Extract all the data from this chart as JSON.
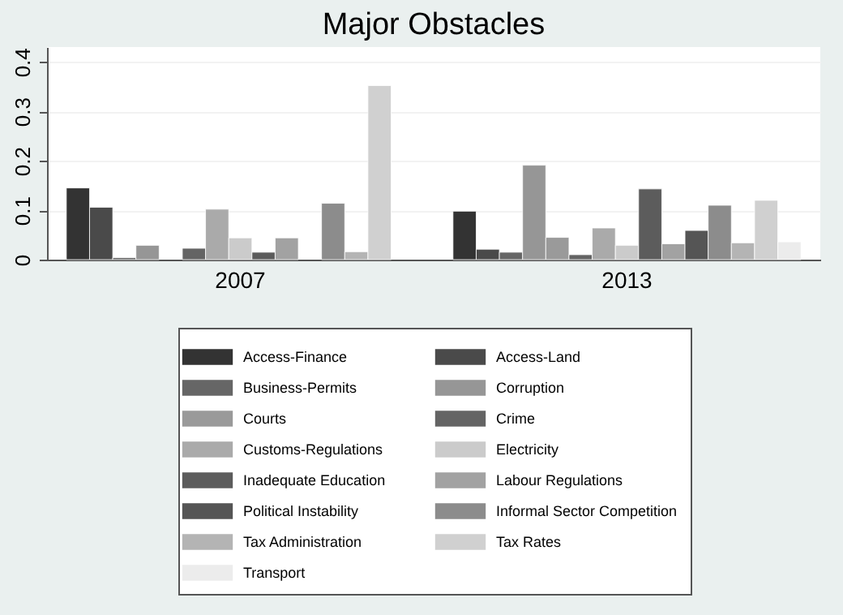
{
  "chart_data": {
    "type": "bar",
    "title": "Major Obstacles",
    "categories": [
      "2007",
      "2013"
    ],
    "series": [
      {
        "name": "Access-Finance",
        "color": "#333333",
        "values": [
          0.145,
          0.098
        ]
      },
      {
        "name": "Access-Land",
        "color": "#4a4a4a",
        "values": [
          0.106,
          0.021
        ]
      },
      {
        "name": "Business-Permits",
        "color": "#666666",
        "values": [
          0.004,
          0.015
        ]
      },
      {
        "name": "Corruption",
        "color": "#969696",
        "values": [
          0.029,
          0.191
        ]
      },
      {
        "name": "Courts",
        "color": "#9a9a9a",
        "values": [
          null,
          0.045
        ]
      },
      {
        "name": "Crime",
        "color": "#646464",
        "values": [
          0.023,
          0.01
        ]
      },
      {
        "name": "Customs-Regulations",
        "color": "#aaaaaa",
        "values": [
          0.102,
          0.064
        ]
      },
      {
        "name": "Electricity",
        "color": "#cbcbcb",
        "values": [
          0.044,
          0.029
        ]
      },
      {
        "name": "Inadequate Education",
        "color": "#5c5c5c",
        "values": [
          0.015,
          0.143
        ]
      },
      {
        "name": "Labour Regulations",
        "color": "#a2a2a2",
        "values": [
          0.044,
          0.032
        ]
      },
      {
        "name": "Political Instability",
        "color": "#555555",
        "values": [
          null,
          0.059
        ]
      },
      {
        "name": "Informal Sector Competition",
        "color": "#8c8c8c",
        "values": [
          0.114,
          0.11
        ]
      },
      {
        "name": "Tax Administration",
        "color": "#b4b4b4",
        "values": [
          0.016,
          0.034
        ]
      },
      {
        "name": "Tax Rates",
        "color": "#d0d0d0",
        "values": [
          0.352,
          0.12
        ]
      },
      {
        "name": "Transport",
        "color": "#ececec",
        "values": [
          null,
          0.036
        ]
      }
    ],
    "ylim": [
      0,
      0.43
    ],
    "yticks": [
      0,
      0.1,
      0.2,
      0.3,
      0.4
    ],
    "grid": true,
    "legend": "bottom"
  }
}
